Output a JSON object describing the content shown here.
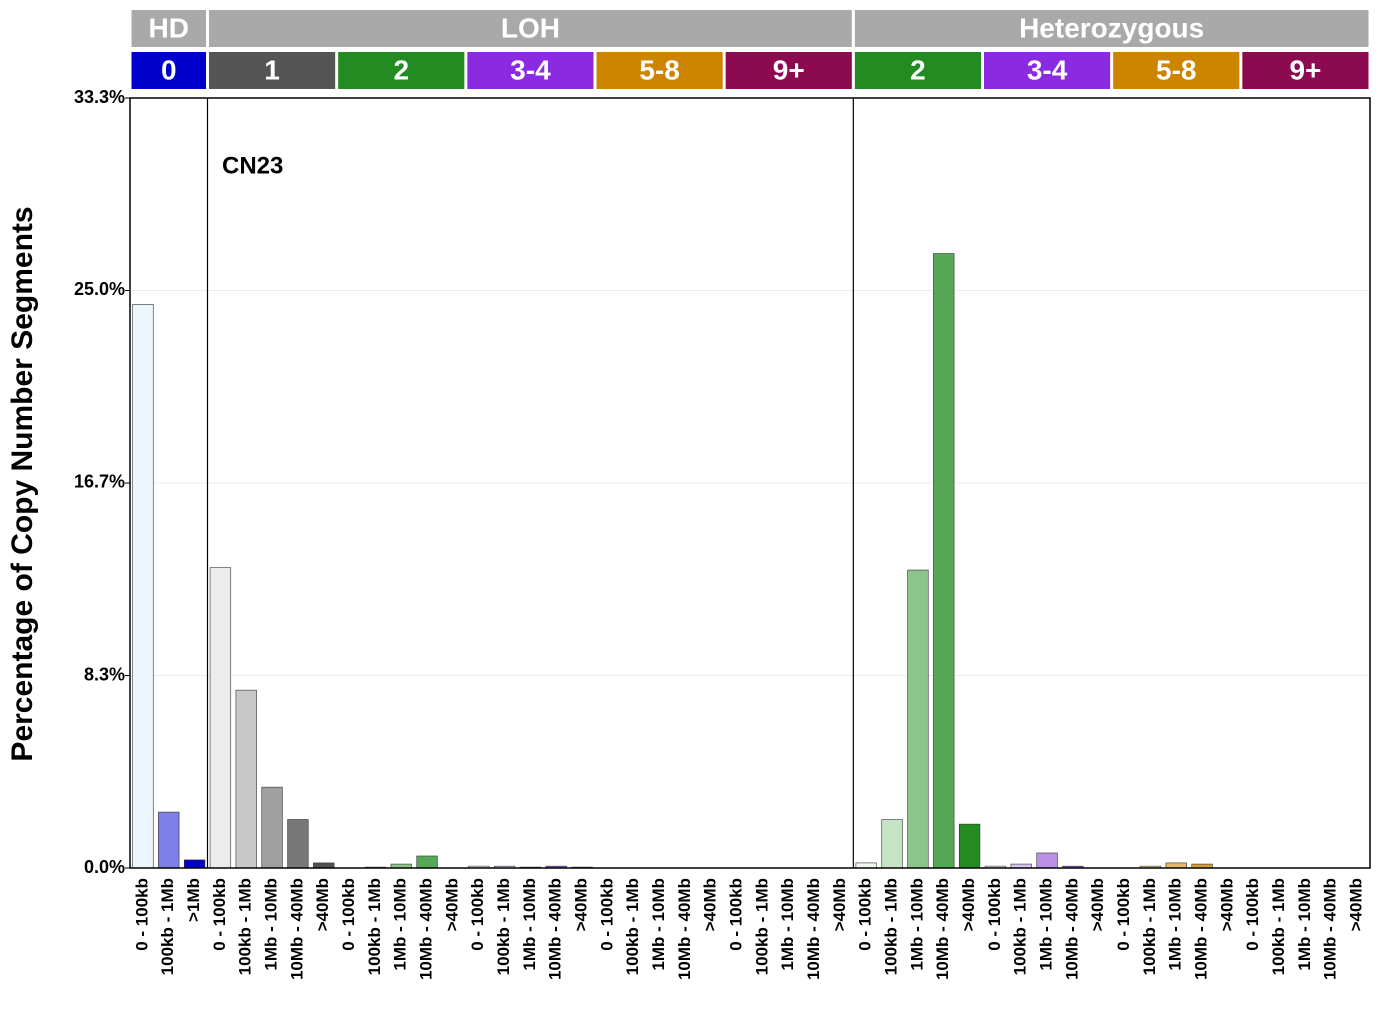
{
  "chart_data": {
    "type": "bar",
    "y_label": "Percentage of Copy Number Segments",
    "annotation": "CN23",
    "ylim": [
      0,
      33.333
    ],
    "yticks": [
      {
        "value": 0,
        "label": "0.0%"
      },
      {
        "value": 8.333,
        "label": "8.3%"
      },
      {
        "value": 16.667,
        "label": "16.7%"
      },
      {
        "value": 25,
        "label": "25.0%"
      },
      {
        "value": 33.333,
        "label": "33.3%"
      }
    ],
    "grid": true,
    "panels": [
      {
        "label": "HD",
        "color": "#a9a9a9",
        "subgroups": [
          {
            "label": "0",
            "color": "#0000cd",
            "categories": [
              "0 - 100kb",
              "100kb - 1Mb",
              ">1Mb"
            ],
            "values": [
              24.4,
              2.42,
              0.35
            ],
            "bar_colors": [
              "#eef6fd",
              "#7b7fe6",
              "#0000cd"
            ]
          }
        ]
      },
      {
        "label": "LOH",
        "color": "#a9a9a9",
        "subgroups": [
          {
            "label": "1",
            "color": "#555555",
            "categories": [
              "0 - 100kb",
              "100kb - 1Mb",
              "1Mb - 10Mb",
              "10Mb - 40Mb",
              ">40Mb"
            ],
            "values": [
              13.0,
              7.7,
              3.5,
              2.1,
              0.22
            ],
            "bar_colors": [
              "#ececec",
              "#c8c8c8",
              "#a0a0a0",
              "#787878",
              "#505050"
            ]
          },
          {
            "label": "2",
            "color": "#228b22",
            "categories": [
              "0 - 100kb",
              "100kb - 1Mb",
              "1Mb - 10Mb",
              "10Mb - 40Mb",
              ">40Mb"
            ],
            "values": [
              0,
              0.04,
              0.17,
              0.52,
              0
            ],
            "bar_colors": [
              "#f0f8f0",
              "#c5e3c5",
              "#8cc58c",
              "#56a756",
              "#228b22"
            ]
          },
          {
            "label": "3-4",
            "color": "#8a2be2",
            "categories": [
              "0 - 100kb",
              "100kb - 1Mb",
              "1Mb - 10Mb",
              "10Mb - 40Mb",
              ">40Mb"
            ],
            "values": [
              0.08,
              0.08,
              0.04,
              0.08,
              0.04
            ],
            "bar_colors": [
              "#f2eafb",
              "#d9c2ee",
              "#bb90e4",
              "#9a5ed8",
              "#7a2ad0"
            ]
          },
          {
            "label": "5-8",
            "color": "#cd8500",
            "categories": [
              "0 - 100kb",
              "100kb - 1Mb",
              "1Mb - 10Mb",
              "10Mb - 40Mb",
              ">40Mb"
            ],
            "values": [
              0,
              0,
              0,
              0,
              0
            ],
            "bar_colors": [
              "#fbf1dc",
              "#f0d79f",
              "#e2b866",
              "#d99e33",
              "#cd8500"
            ]
          },
          {
            "label": "9+",
            "color": "#8b0a50",
            "categories": [
              "0 - 100kb",
              "100kb - 1Mb",
              "1Mb - 10Mb",
              "10Mb - 40Mb",
              ">40Mb"
            ],
            "values": [
              0,
              0,
              0,
              0,
              0
            ],
            "bar_colors": [
              "#f3dde8",
              "#dca3c1",
              "#c26a99",
              "#a43a73",
              "#8b0a50"
            ]
          }
        ]
      },
      {
        "label": "Heterozygous",
        "color": "#a9a9a9",
        "subgroups": [
          {
            "label": "2",
            "color": "#228b22",
            "categories": [
              "0 - 100kb",
              "100kb - 1Mb",
              "1Mb - 10Mb",
              "10Mb - 40Mb",
              ">40Mb"
            ],
            "values": [
              0.22,
              2.1,
              12.9,
              26.6,
              1.9
            ],
            "bar_colors": [
              "#f0f8f0",
              "#c5e3c5",
              "#8cc58c",
              "#56a756",
              "#228b22"
            ]
          },
          {
            "label": "3-4",
            "color": "#8a2be2",
            "categories": [
              "0 - 100kb",
              "100kb - 1Mb",
              "1Mb - 10Mb",
              "10Mb - 40Mb",
              ">40Mb"
            ],
            "values": [
              0.08,
              0.17,
              0.65,
              0.08,
              0
            ],
            "bar_colors": [
              "#f2eafb",
              "#d9c2ee",
              "#bb90e4",
              "#9a5ed8",
              "#7a2ad0"
            ]
          },
          {
            "label": "5-8",
            "color": "#cd8500",
            "categories": [
              "0 - 100kb",
              "100kb - 1Mb",
              "1Mb - 10Mb",
              "10Mb - 40Mb",
              ">40Mb"
            ],
            "values": [
              0,
              0.08,
              0.22,
              0.17,
              0
            ],
            "bar_colors": [
              "#fbf1dc",
              "#f0d79f",
              "#e2b866",
              "#d99e33",
              "#cd8500"
            ]
          },
          {
            "label": "9+",
            "color": "#8b0a50",
            "categories": [
              "0 - 100kb",
              "100kb - 1Mb",
              "1Mb - 10Mb",
              "10Mb - 40Mb",
              ">40Mb"
            ],
            "values": [
              0,
              0,
              0,
              0,
              0
            ],
            "bar_colors": [
              "#f3dde8",
              "#dca3c1",
              "#c26a99",
              "#a43a73",
              "#8b0a50"
            ]
          }
        ]
      }
    ]
  }
}
